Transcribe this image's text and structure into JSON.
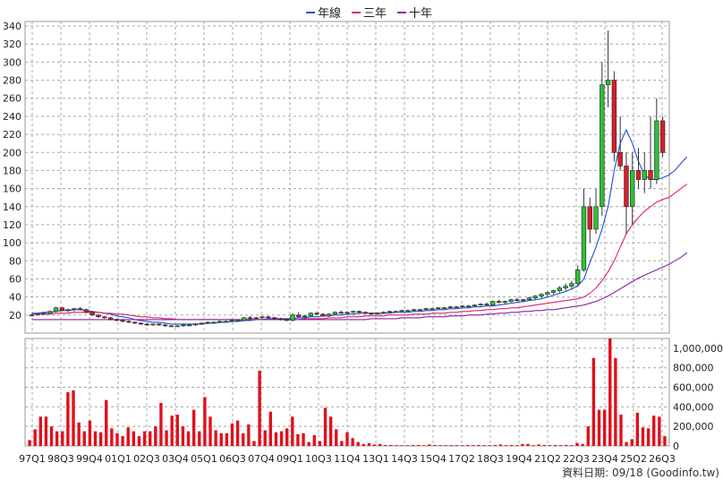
{
  "legend": {
    "items": [
      {
        "label": "年線",
        "color": "#1f4fd8"
      },
      {
        "label": "三年",
        "color": "#e0206a"
      },
      {
        "label": "十年",
        "color": "#8a1fa6"
      }
    ]
  },
  "footer": {
    "date_text": "資料日期: 09/18  (Goodinfo.tw)"
  },
  "chart_data": [
    {
      "type": "candlestick",
      "yticks": [
        20,
        40,
        60,
        80,
        100,
        120,
        140,
        160,
        180,
        200,
        220,
        240,
        260,
        280,
        300,
        320,
        340
      ],
      "ylim": [
        0,
        345
      ],
      "xticks": [
        "97Q1",
        "98Q3",
        "99Q4",
        "01Q1",
        "02Q3",
        "03Q4",
        "05Q1",
        "06Q3",
        "07Q4",
        "09Q1",
        "10Q3",
        "11Q4",
        "13Q1",
        "14Q3",
        "15Q4",
        "17Q2",
        "18Q3",
        "19Q4",
        "21Q2",
        "22Q3",
        "23Q4",
        "25Q2",
        "26Q3"
      ],
      "grid": true,
      "candles": [
        [
          20,
          21,
          19,
          20
        ],
        [
          20,
          22,
          20,
          21
        ],
        [
          21,
          23,
          20,
          22
        ],
        [
          22,
          25,
          21,
          24
        ],
        [
          24,
          29,
          23,
          28
        ],
        [
          28,
          29,
          24,
          25
        ],
        [
          25,
          27,
          23,
          26
        ],
        [
          26,
          28,
          24,
          27
        ],
        [
          27,
          29,
          25,
          26
        ],
        [
          26,
          27,
          22,
          23
        ],
        [
          23,
          24,
          19,
          20
        ],
        [
          20,
          21,
          17,
          18
        ],
        [
          18,
          19,
          16,
          17
        ],
        [
          17,
          18,
          14,
          15
        ],
        [
          15,
          16,
          13,
          14
        ],
        [
          14,
          15,
          12,
          13
        ],
        [
          13,
          14,
          11,
          12
        ],
        [
          12,
          13,
          10,
          11
        ],
        [
          11,
          12,
          9,
          10
        ],
        [
          10,
          11,
          8,
          9
        ],
        [
          9,
          10,
          8,
          10
        ],
        [
          10,
          11,
          8,
          9
        ],
        [
          9,
          10,
          7,
          8
        ],
        [
          8,
          9,
          7,
          8
        ],
        [
          8,
          9,
          7,
          8
        ],
        [
          8,
          10,
          7,
          9
        ],
        [
          9,
          10,
          8,
          9
        ],
        [
          9,
          11,
          8,
          10
        ],
        [
          10,
          12,
          9,
          11
        ],
        [
          11,
          13,
          10,
          12
        ],
        [
          12,
          13,
          11,
          12
        ],
        [
          12,
          14,
          11,
          13
        ],
        [
          13,
          14,
          12,
          13
        ],
        [
          13,
          15,
          12,
          14
        ],
        [
          14,
          15,
          13,
          14
        ],
        [
          14,
          18,
          13,
          17
        ],
        [
          17,
          19,
          15,
          16
        ],
        [
          16,
          18,
          15,
          17
        ],
        [
          17,
          19,
          16,
          18
        ],
        [
          18,
          19,
          16,
          17
        ],
        [
          17,
          18,
          15,
          16
        ],
        [
          16,
          17,
          14,
          15
        ],
        [
          15,
          16,
          13,
          14
        ],
        [
          14,
          22,
          13,
          20
        ],
        [
          20,
          23,
          17,
          18
        ],
        [
          18,
          20,
          16,
          19
        ],
        [
          19,
          23,
          18,
          22
        ],
        [
          22,
          24,
          20,
          21
        ],
        [
          21,
          22,
          18,
          19
        ],
        [
          19,
          22,
          18,
          21
        ],
        [
          21,
          24,
          20,
          23
        ],
        [
          23,
          25,
          21,
          22
        ],
        [
          22,
          24,
          20,
          23
        ],
        [
          23,
          25,
          22,
          24
        ],
        [
          24,
          25,
          22,
          23
        ],
        [
          23,
          24,
          21,
          22
        ],
        [
          22,
          23,
          20,
          21
        ],
        [
          21,
          23,
          20,
          22
        ],
        [
          22,
          24,
          21,
          23
        ],
        [
          23,
          25,
          22,
          24
        ],
        [
          24,
          25,
          23,
          24
        ],
        [
          24,
          26,
          23,
          25
        ],
        [
          25,
          26,
          24,
          25
        ],
        [
          25,
          27,
          24,
          26
        ],
        [
          26,
          27,
          25,
          26
        ],
        [
          26,
          28,
          25,
          27
        ],
        [
          27,
          28,
          26,
          27
        ],
        [
          27,
          29,
          26,
          28
        ],
        [
          28,
          29,
          27,
          28
        ],
        [
          28,
          30,
          27,
          29
        ],
        [
          29,
          30,
          28,
          29
        ],
        [
          29,
          31,
          28,
          30
        ],
        [
          30,
          31,
          29,
          30
        ],
        [
          30,
          32,
          29,
          31
        ],
        [
          31,
          33,
          30,
          32
        ],
        [
          32,
          34,
          30,
          31
        ],
        [
          31,
          36,
          30,
          35
        ],
        [
          35,
          37,
          33,
          34
        ],
        [
          34,
          36,
          32,
          35
        ],
        [
          35,
          38,
          34,
          37
        ],
        [
          37,
          39,
          35,
          36
        ],
        [
          36,
          38,
          34,
          37
        ],
        [
          37,
          40,
          36,
          39
        ],
        [
          39,
          42,
          37,
          41
        ],
        [
          41,
          44,
          39,
          43
        ],
        [
          43,
          46,
          41,
          45
        ],
        [
          45,
          48,
          43,
          47
        ],
        [
          47,
          52,
          45,
          50
        ],
        [
          50,
          55,
          47,
          52
        ],
        [
          52,
          58,
          48,
          55
        ],
        [
          55,
          75,
          52,
          70
        ],
        [
          70,
          160,
          68,
          140
        ],
        [
          140,
          150,
          100,
          115
        ],
        [
          115,
          160,
          110,
          140
        ],
        [
          140,
          300,
          130,
          275
        ],
        [
          275,
          335,
          250,
          280
        ],
        [
          280,
          290,
          190,
          200
        ],
        [
          200,
          240,
          180,
          185
        ],
        [
          185,
          200,
          110,
          140
        ],
        [
          140,
          200,
          120,
          180
        ],
        [
          180,
          205,
          160,
          170
        ],
        [
          170,
          200,
          155,
          180
        ],
        [
          180,
          240,
          160,
          170
        ],
        [
          170,
          260,
          165,
          235
        ],
        [
          235,
          240,
          195,
          200
        ]
      ],
      "series": [
        {
          "name": "年線",
          "values": [
            22,
            22,
            23,
            23,
            24,
            25,
            25,
            26,
            26,
            25,
            24,
            23,
            22,
            21,
            19,
            18,
            17,
            15,
            14,
            13,
            12,
            12,
            11,
            10,
            10,
            10,
            10,
            10,
            10,
            11,
            11,
            12,
            12,
            13,
            13,
            14,
            14,
            15,
            15,
            16,
            16,
            16,
            16,
            16,
            17,
            17,
            18,
            18,
            19,
            19,
            20,
            20,
            21,
            21,
            22,
            22,
            22,
            22,
            22,
            22,
            23,
            23,
            23,
            24,
            24,
            25,
            25,
            26,
            26,
            27,
            27,
            28,
            28,
            29,
            29,
            30,
            30,
            31,
            32,
            33,
            34,
            35,
            36,
            37,
            38,
            40,
            42,
            44,
            46,
            49,
            52,
            60,
            78,
            95,
            115,
            140,
            180,
            210,
            225,
            210,
            190,
            175,
            170,
            170,
            172,
            175,
            180,
            188,
            195
          ]
        },
        {
          "name": "三年",
          "values": [
            21,
            21,
            21,
            21,
            22,
            22,
            22,
            23,
            23,
            23,
            23,
            23,
            22,
            22,
            21,
            21,
            20,
            19,
            18,
            18,
            17,
            17,
            16,
            16,
            15,
            15,
            15,
            15,
            15,
            15,
            15,
            15,
            15,
            15,
            15,
            15,
            15,
            15,
            15,
            15,
            15,
            15,
            15,
            15,
            15,
            16,
            16,
            16,
            16,
            17,
            17,
            17,
            18,
            18,
            18,
            19,
            19,
            19,
            19,
            20,
            20,
            20,
            20,
            21,
            21,
            21,
            22,
            22,
            22,
            23,
            23,
            24,
            24,
            25,
            25,
            26,
            26,
            27,
            27,
            28,
            28,
            29,
            30,
            31,
            32,
            33,
            34,
            35,
            36,
            37,
            38,
            40,
            44,
            50,
            58,
            68,
            80,
            95,
            110,
            120,
            128,
            135,
            140,
            145,
            148,
            150,
            155,
            160,
            165
          ]
        },
        {
          "name": "十年",
          "values": [
            15,
            15,
            15,
            15,
            15,
            15,
            15,
            15,
            15,
            15,
            15,
            15,
            15,
            15,
            15,
            15,
            15,
            15,
            15,
            15,
            15,
            15,
            15,
            15,
            15,
            15,
            15,
            15,
            15,
            15,
            15,
            15,
            15,
            15,
            15,
            15,
            15,
            15,
            15,
            15,
            15,
            15,
            15,
            15,
            15,
            15,
            15,
            15,
            15,
            15,
            15,
            15,
            15,
            15,
            15,
            15,
            16,
            16,
            16,
            16,
            16,
            17,
            17,
            17,
            17,
            18,
            18,
            18,
            18,
            19,
            19,
            19,
            20,
            20,
            20,
            21,
            21,
            22,
            22,
            23,
            23,
            24,
            24,
            25,
            25,
            26,
            26,
            27,
            28,
            29,
            30,
            31,
            33,
            35,
            38,
            41,
            45,
            49,
            53,
            57,
            61,
            64,
            67,
            70,
            73,
            76,
            80,
            84,
            89
          ]
        }
      ]
    },
    {
      "type": "bar",
      "yticks": [
        "1,000,000",
        "800,000",
        "600,000",
        "400,000",
        "200,000",
        "0"
      ],
      "ylim": [
        0,
        1100000
      ],
      "values": [
        60000,
        170000,
        300000,
        300000,
        200000,
        150000,
        150000,
        550000,
        570000,
        240000,
        150000,
        260000,
        150000,
        140000,
        470000,
        180000,
        130000,
        100000,
        190000,
        150000,
        100000,
        150000,
        150000,
        200000,
        440000,
        160000,
        310000,
        320000,
        200000,
        150000,
        370000,
        150000,
        500000,
        300000,
        160000,
        130000,
        130000,
        230000,
        260000,
        130000,
        220000,
        50000,
        770000,
        160000,
        350000,
        140000,
        150000,
        180000,
        300000,
        120000,
        130000,
        40000,
        110000,
        50000,
        390000,
        300000,
        170000,
        50000,
        140000,
        80000,
        40000,
        20000,
        30000,
        15000,
        20000,
        10000,
        10000,
        8000,
        8000,
        8000,
        10000,
        10000,
        8000,
        15000,
        10000,
        8000,
        8000,
        8000,
        8000,
        8000,
        10000,
        8000,
        10000,
        8000,
        8000,
        10000,
        15000,
        8000,
        10000,
        8000,
        20000,
        20000,
        8000,
        15000,
        10000,
        8000,
        10000,
        8000,
        10000,
        8000,
        30000,
        20000,
        200000,
        900000,
        370000,
        370000,
        1110000,
        900000,
        320000,
        40000,
        70000,
        340000,
        190000,
        180000,
        310000,
        300000,
        100000
      ]
    }
  ]
}
